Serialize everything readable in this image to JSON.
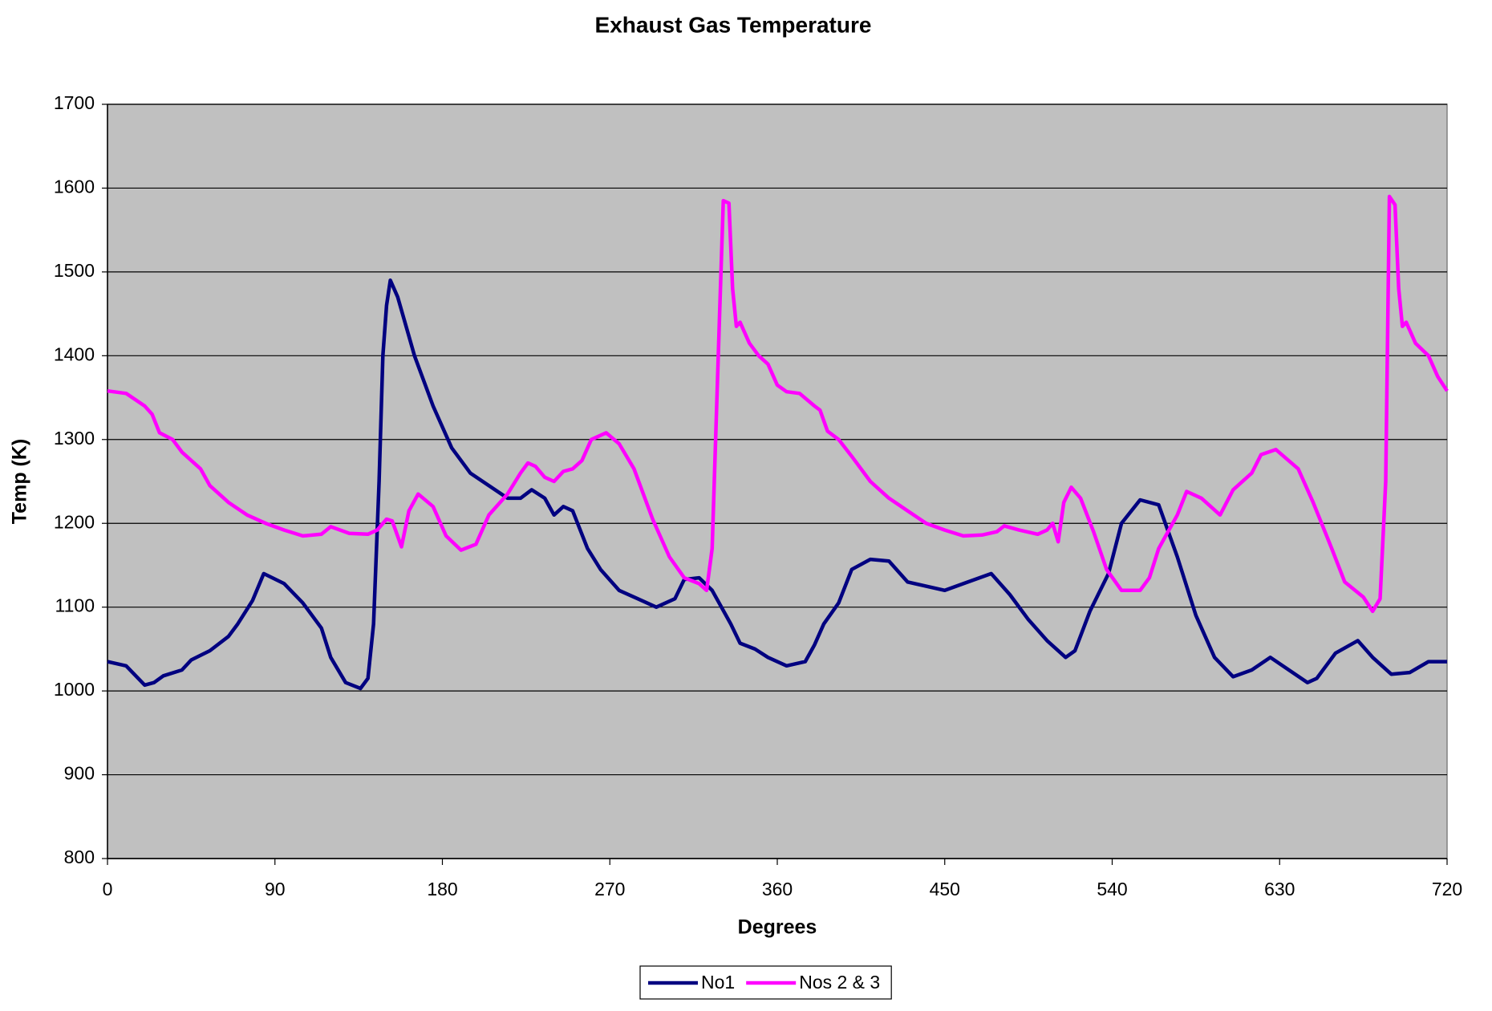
{
  "chart_data": {
    "type": "line",
    "title": "Exhaust Gas Temperature",
    "x_label": "Degrees",
    "y_label": "Temp (K)",
    "xlim": [
      0,
      720
    ],
    "xticks": [
      0,
      90,
      180,
      270,
      360,
      450,
      540,
      630,
      720
    ],
    "ylim": [
      800,
      1700
    ],
    "yticks": [
      800,
      900,
      1000,
      1100,
      1200,
      1300,
      1400,
      1500,
      1600,
      1700
    ],
    "grid": true,
    "legend": "bottom",
    "series": [
      {
        "name": "No1",
        "color": "#000080",
        "x": [
          0,
          10,
          20,
          25,
          30,
          40,
          45,
          55,
          65,
          70,
          78,
          84,
          95,
          105,
          115,
          120,
          128,
          136,
          140,
          143,
          146,
          148,
          150,
          152,
          156,
          165,
          175,
          185,
          195,
          205,
          215,
          222,
          228,
          235,
          240,
          245,
          250,
          258,
          265,
          275,
          285,
          295,
          305,
          310,
          318,
          325,
          335,
          340,
          348,
          355,
          365,
          375,
          380,
          385,
          393,
          400,
          410,
          420,
          430,
          440,
          450,
          460,
          475,
          485,
          495,
          505,
          515,
          520,
          528,
          538,
          545,
          555,
          565,
          575,
          585,
          595,
          605,
          615,
          625,
          635,
          645,
          650,
          660,
          672,
          680,
          690,
          700,
          710,
          720
        ],
        "values": [
          1035,
          1030,
          1007,
          1010,
          1018,
          1025,
          1037,
          1048,
          1065,
          1080,
          1108,
          1140,
          1128,
          1105,
          1075,
          1040,
          1010,
          1003,
          1015,
          1080,
          1250,
          1400,
          1460,
          1490,
          1470,
          1400,
          1340,
          1290,
          1260,
          1245,
          1230,
          1230,
          1240,
          1230,
          1210,
          1220,
          1215,
          1170,
          1145,
          1120,
          1110,
          1100,
          1110,
          1133,
          1135,
          1120,
          1080,
          1057,
          1050,
          1040,
          1030,
          1035,
          1055,
          1080,
          1105,
          1145,
          1157,
          1155,
          1130,
          1125,
          1120,
          1128,
          1140,
          1115,
          1085,
          1060,
          1040,
          1048,
          1095,
          1140,
          1200,
          1228,
          1222,
          1160,
          1090,
          1040,
          1017,
          1025,
          1040,
          1025,
          1010,
          1015,
          1045,
          1060,
          1040,
          1020,
          1022,
          1035,
          1035
        ]
      },
      {
        "name": "Nos 2 & 3",
        "color": "#ff00ff",
        "x": [
          0,
          10,
          20,
          24,
          28,
          35,
          40,
          50,
          55,
          65,
          75,
          85,
          95,
          105,
          115,
          120,
          130,
          140,
          145,
          150,
          153,
          158,
          162,
          167,
          175,
          182,
          190,
          198,
          205,
          215,
          222,
          226,
          230,
          235,
          240,
          245,
          250,
          255,
          260,
          268,
          275,
          283,
          293,
          302,
          310,
          318,
          322,
          325,
          329,
          331,
          334,
          336,
          338,
          340,
          345,
          350,
          355,
          360,
          365,
          372,
          380,
          383,
          387,
          393,
          400,
          410,
          420,
          430,
          440,
          450,
          460,
          470,
          478,
          482,
          490,
          500,
          505,
          508,
          511,
          514,
          518,
          523,
          530,
          537,
          545,
          555,
          560,
          565,
          575,
          580,
          588,
          598,
          605,
          615,
          620,
          628,
          640,
          648,
          658,
          665,
          675,
          680,
          684,
          687,
          689,
          692,
          694,
          696,
          698,
          703,
          710,
          715,
          720
        ],
        "values": [
          1358,
          1355,
          1340,
          1330,
          1308,
          1300,
          1285,
          1265,
          1245,
          1225,
          1210,
          1200,
          1192,
          1185,
          1187,
          1196,
          1188,
          1187,
          1192,
          1205,
          1203,
          1172,
          1215,
          1235,
          1220,
          1185,
          1168,
          1175,
          1210,
          1235,
          1260,
          1272,
          1268,
          1255,
          1250,
          1262,
          1265,
          1275,
          1300,
          1308,
          1295,
          1265,
          1205,
          1160,
          1135,
          1128,
          1120,
          1170,
          1450,
          1585,
          1582,
          1480,
          1435,
          1440,
          1415,
          1400,
          1390,
          1365,
          1357,
          1355,
          1340,
          1335,
          1310,
          1300,
          1280,
          1250,
          1230,
          1215,
          1200,
          1192,
          1185,
          1186,
          1190,
          1197,
          1192,
          1187,
          1192,
          1200,
          1178,
          1225,
          1243,
          1230,
          1190,
          1145,
          1120,
          1120,
          1135,
          1170,
          1210,
          1238,
          1230,
          1210,
          1240,
          1260,
          1282,
          1288,
          1265,
          1225,
          1170,
          1130,
          1112,
          1095,
          1110,
          1250,
          1590,
          1580,
          1480,
          1435,
          1440,
          1415,
          1400,
          1375,
          1358
        ]
      }
    ]
  }
}
